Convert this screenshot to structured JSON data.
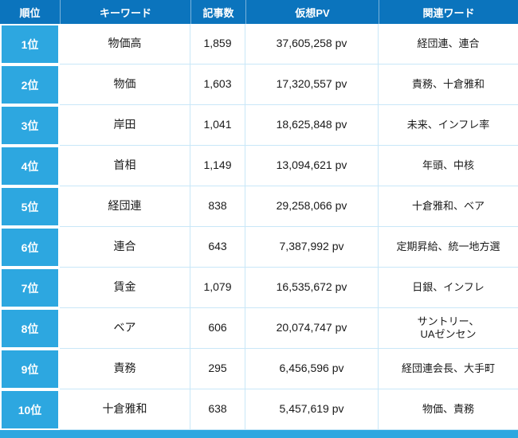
{
  "chart_data": {
    "type": "table",
    "title": "",
    "columns": [
      "順位",
      "キーワード",
      "記事数",
      "仮想PV",
      "関連ワード"
    ],
    "column_keys": [
      "rank",
      "keyword",
      "articles",
      "pv",
      "related"
    ],
    "rows": [
      {
        "rank": "1位",
        "keyword": "物価高",
        "articles": "1,859",
        "pv": "37,605,258 pv",
        "related": "経団連、連合"
      },
      {
        "rank": "2位",
        "keyword": "物価",
        "articles": "1,603",
        "pv": "17,320,557 pv",
        "related": "責務、十倉雅和"
      },
      {
        "rank": "3位",
        "keyword": "岸田",
        "articles": "1,041",
        "pv": "18,625,848 pv",
        "related": "未来、インフレ率"
      },
      {
        "rank": "4位",
        "keyword": "首相",
        "articles": "1,149",
        "pv": "13,094,621 pv",
        "related": "年頭、中核"
      },
      {
        "rank": "5位",
        "keyword": "経団連",
        "articles": "838",
        "pv": "29,258,066 pv",
        "related": "十倉雅和、ベア"
      },
      {
        "rank": "6位",
        "keyword": "連合",
        "articles": "643",
        "pv": "7,387,992 pv",
        "related": "定期昇給、統一地方選"
      },
      {
        "rank": "7位",
        "keyword": "賃金",
        "articles": "1,079",
        "pv": "16,535,672 pv",
        "related": "日銀、インフレ"
      },
      {
        "rank": "8位",
        "keyword": "ベア",
        "articles": "606",
        "pv": "20,074,747 pv",
        "related": "サントリー、\nUAゼンセン"
      },
      {
        "rank": "9位",
        "keyword": "責務",
        "articles": "295",
        "pv": "6,456,596 pv",
        "related": "経団連会長、大手町"
      },
      {
        "rank": "10位",
        "keyword": "十倉雅和",
        "articles": "638",
        "pv": "5,457,619 pv",
        "related": "物価、責務"
      }
    ]
  },
  "colors": {
    "header_bg": "#0b74bd",
    "header_text": "#ffffff",
    "rank_bg": "#2da7e0",
    "row_line": "#c9e7f8",
    "text": "#1a1a1a"
  }
}
